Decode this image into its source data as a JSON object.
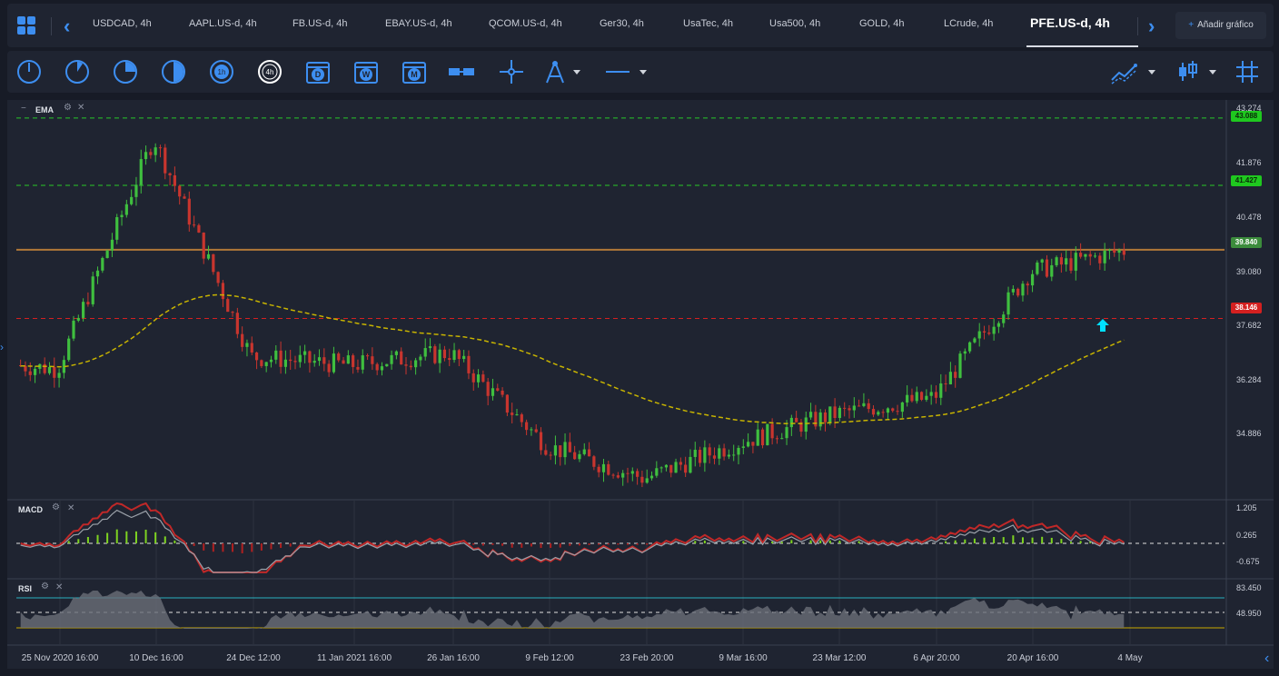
{
  "tabs": {
    "items": [
      {
        "label": "USDCAD, 4h"
      },
      {
        "label": "AAPL.US-d, 4h"
      },
      {
        "label": "FB.US-d, 4h"
      },
      {
        "label": "EBAY.US-d, 4h"
      },
      {
        "label": "QCOM.US-d, 4h"
      },
      {
        "label": "Ger30, 4h"
      },
      {
        "label": "UsaTec, 4h"
      },
      {
        "label": "Usa500, 4h"
      },
      {
        "label": "GOLD, 4h"
      },
      {
        "label": "LCrude, 4h"
      },
      {
        "label": "PFE.US-d, 4h"
      }
    ],
    "add_label": "Añadir gráfico"
  },
  "toolbar": {
    "timeframes": [
      "1m-icon",
      "5m-icon",
      "15m-icon",
      "30m-icon",
      "1h",
      "4h"
    ],
    "periods": [
      "D",
      "W",
      "M"
    ]
  },
  "chart": {
    "indicator_main": "EMA",
    "indicator_macd": "MACD",
    "indicator_rsi": "RSI",
    "price_axis": [
      "43.274",
      "41.876",
      "40.478",
      "39.080",
      "37.682",
      "36.284",
      "34.886"
    ],
    "macd_axis": [
      "1.205",
      "0.265",
      "-0.675"
    ],
    "rsi_axis": [
      "83.450",
      "48.950"
    ],
    "tags": {
      "top_green": "43.088",
      "mid_green": "41.427",
      "current": "39.840",
      "red": "38.146"
    },
    "x_labels": [
      "25 Nov 2020 16:00",
      "10 Dec 16:00",
      "24 Dec 12:00",
      "11 Jan 2021 16:00",
      "26 Jan 16:00",
      "9 Feb 12:00",
      "23 Feb 20:00",
      "9 Mar 16:00",
      "23 Mar 12:00",
      "6 Apr 20:00",
      "20 Apr 16:00",
      "4 May"
    ],
    "colors": {
      "up": "#3fbf3f",
      "down": "#c8352e",
      "ema": "#c8b400",
      "green_level": "#28c828",
      "red_level": "#d42020",
      "resistance": "#b07838",
      "rsi_band": "#2ab0c0"
    }
  },
  "chart_data": {
    "type": "candlestick",
    "title": "PFE.US-d, 4h",
    "ylim": [
      33.9,
      43.4
    ],
    "levels": [
      43.088,
      41.427,
      39.84,
      38.146
    ],
    "key_points": [
      {
        "x": "25 Nov 2020 16:00",
        "y": 36.9
      },
      {
        "x": "10 Dec 16:00",
        "y": 42.6
      },
      {
        "x": "24 Dec 12:00",
        "y": 37.2
      },
      {
        "x": "11 Jan 2021 16:00",
        "y": 37.0
      },
      {
        "x": "26 Jan 16:00",
        "y": 37.3
      },
      {
        "x": "9 Feb 12:00",
        "y": 35.0
      },
      {
        "x": "23 Feb 20:00",
        "y": 34.2
      },
      {
        "x": "9 Mar 16:00",
        "y": 35.1
      },
      {
        "x": "23 Mar 12:00",
        "y": 35.8
      },
      {
        "x": "6 Apr 20:00",
        "y": 36.2
      },
      {
        "x": "20 Apr 16:00",
        "y": 39.3
      },
      {
        "x": "4 May",
        "y": 39.84
      }
    ]
  }
}
